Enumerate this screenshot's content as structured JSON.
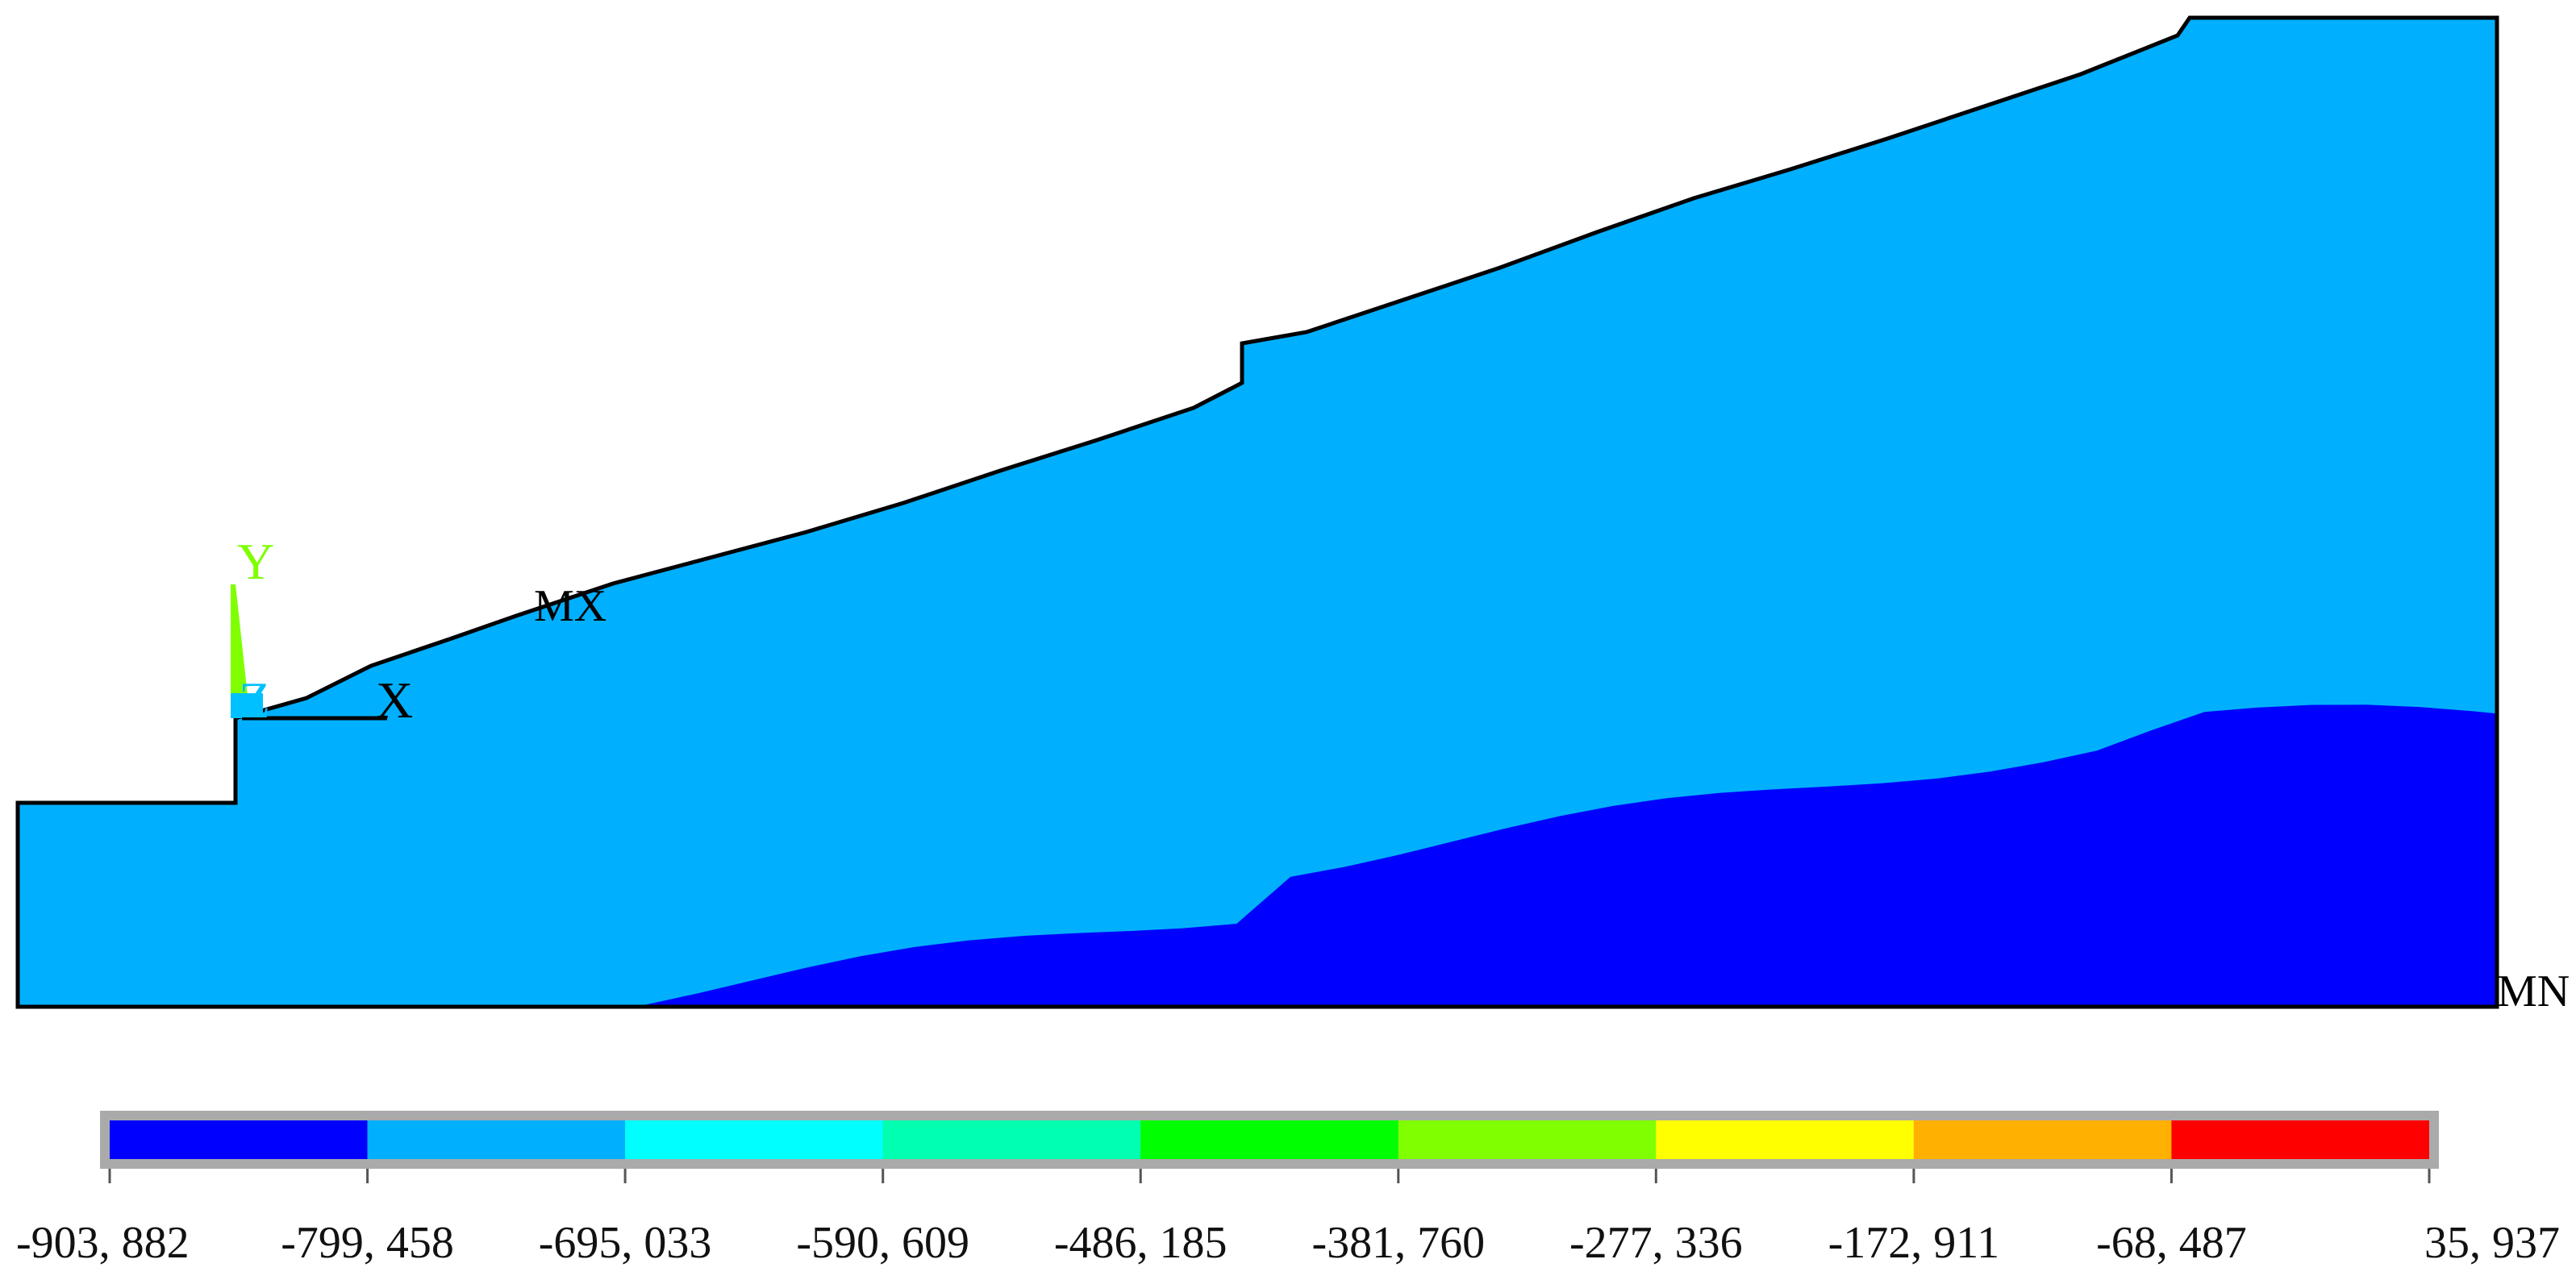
{
  "axis_triad": {
    "y_label": "Y",
    "z_label": "Z",
    "x_label": "X"
  },
  "markers": {
    "max_label": "MX",
    "min_label": "MN"
  },
  "colors": {
    "background": "#ffffff",
    "outline": "#000000",
    "triad_y": "#7fff00",
    "triad_z": "#00c0ff",
    "bands": [
      "#0000ff",
      "#00b0ff",
      "#00ffff",
      "#00ffb0",
      "#00ff00",
      "#80ff00",
      "#ffff00",
      "#ffb000",
      "#ff0000"
    ]
  },
  "legend": {
    "ticks": [
      "-903, 882",
      "-799, 458",
      "-695, 033",
      "-590, 609",
      "-486, 185",
      "-381, 760",
      "-277, 336",
      "-172, 911",
      "-68, 487",
      "35, 937"
    ]
  }
}
